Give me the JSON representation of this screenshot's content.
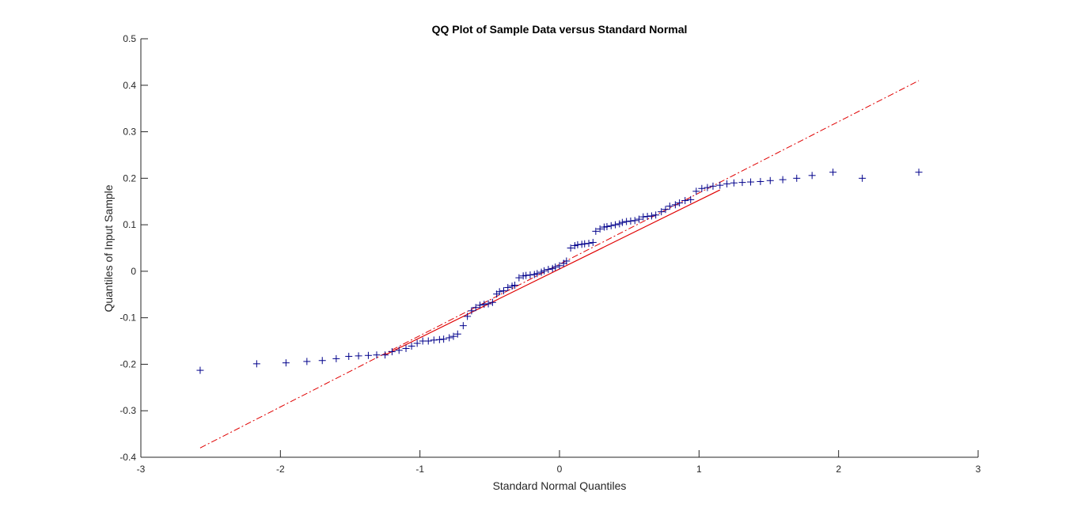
{
  "chart_data": {
    "type": "scatter",
    "title": "QQ Plot of Sample Data versus Standard Normal",
    "xlabel": "Standard Normal Quantiles",
    "ylabel": "Quantiles of Input Sample",
    "xlim": [
      -3,
      3
    ],
    "ylim": [
      -0.4,
      0.5
    ],
    "xticks": [
      "-3",
      "-2",
      "-1",
      "0",
      "1",
      "2",
      "3"
    ],
    "yticks": [
      "-0.4",
      "-0.3",
      "-0.2",
      "-0.1",
      "0",
      "0.1",
      "0.2",
      "0.3",
      "0.4",
      "0.5"
    ],
    "grid": false,
    "marker": "+",
    "marker_color": "#00008b",
    "reference_line": {
      "color": "#e00000",
      "solid_segment": {
        "x": [
          -1.25,
          1.15
        ],
        "y": [
          -0.18,
          0.175
        ]
      },
      "dashdot_segment": {
        "x": [
          -2.575,
          2.575
        ],
        "y": [
          -0.38,
          0.41
        ]
      }
    },
    "points": {
      "x": [
        -2.575,
        -2.17,
        -1.96,
        -1.81,
        -1.7,
        -1.6,
        -1.51,
        -1.44,
        -1.37,
        -1.31,
        -1.25,
        -1.2,
        -1.15,
        -1.1,
        -1.06,
        -1.02,
        -0.98,
        -0.94,
        -0.9,
        -0.86,
        -0.83,
        -0.79,
        -0.76,
        -0.73,
        -0.69,
        -0.66,
        -0.63,
        -0.6,
        -0.57,
        -0.54,
        -0.51,
        -0.48,
        -0.45,
        -0.43,
        -0.4,
        -0.37,
        -0.34,
        -0.32,
        -0.29,
        -0.26,
        -0.24,
        -0.21,
        -0.18,
        -0.16,
        -0.13,
        -0.11,
        -0.08,
        -0.05,
        -0.03,
        0.0,
        0.03,
        0.05,
        0.08,
        0.11,
        0.13,
        0.16,
        0.18,
        0.21,
        0.24,
        0.26,
        0.29,
        0.32,
        0.34,
        0.37,
        0.4,
        0.43,
        0.45,
        0.48,
        0.51,
        0.54,
        0.57,
        0.6,
        0.63,
        0.66,
        0.69,
        0.73,
        0.76,
        0.79,
        0.83,
        0.86,
        0.9,
        0.94,
        0.98,
        1.02,
        1.06,
        1.1,
        1.15,
        1.2,
        1.25,
        1.31,
        1.37,
        1.44,
        1.51,
        1.6,
        1.7,
        1.81,
        1.96,
        2.17,
        2.575
      ],
      "y": [
        -0.213,
        -0.199,
        -0.197,
        -0.194,
        -0.192,
        -0.188,
        -0.183,
        -0.182,
        -0.181,
        -0.18,
        -0.18,
        -0.173,
        -0.17,
        -0.166,
        -0.161,
        -0.155,
        -0.15,
        -0.15,
        -0.148,
        -0.147,
        -0.146,
        -0.143,
        -0.14,
        -0.135,
        -0.117,
        -0.097,
        -0.085,
        -0.078,
        -0.073,
        -0.071,
        -0.07,
        -0.067,
        -0.049,
        -0.044,
        -0.042,
        -0.035,
        -0.032,
        -0.03,
        -0.014,
        -0.01,
        -0.009,
        -0.008,
        -0.007,
        -0.005,
        -0.002,
        0.001,
        0.004,
        0.006,
        0.009,
        0.012,
        0.017,
        0.022,
        0.05,
        0.055,
        0.057,
        0.058,
        0.059,
        0.06,
        0.062,
        0.086,
        0.091,
        0.095,
        0.096,
        0.098,
        0.1,
        0.102,
        0.105,
        0.107,
        0.108,
        0.109,
        0.112,
        0.117,
        0.118,
        0.119,
        0.121,
        0.128,
        0.133,
        0.14,
        0.143,
        0.147,
        0.152,
        0.154,
        0.172,
        0.178,
        0.18,
        0.183,
        0.185,
        0.188,
        0.19,
        0.191,
        0.192,
        0.193,
        0.195,
        0.197,
        0.2,
        0.206,
        0.213,
        0.2,
        0.213
      ]
    }
  }
}
